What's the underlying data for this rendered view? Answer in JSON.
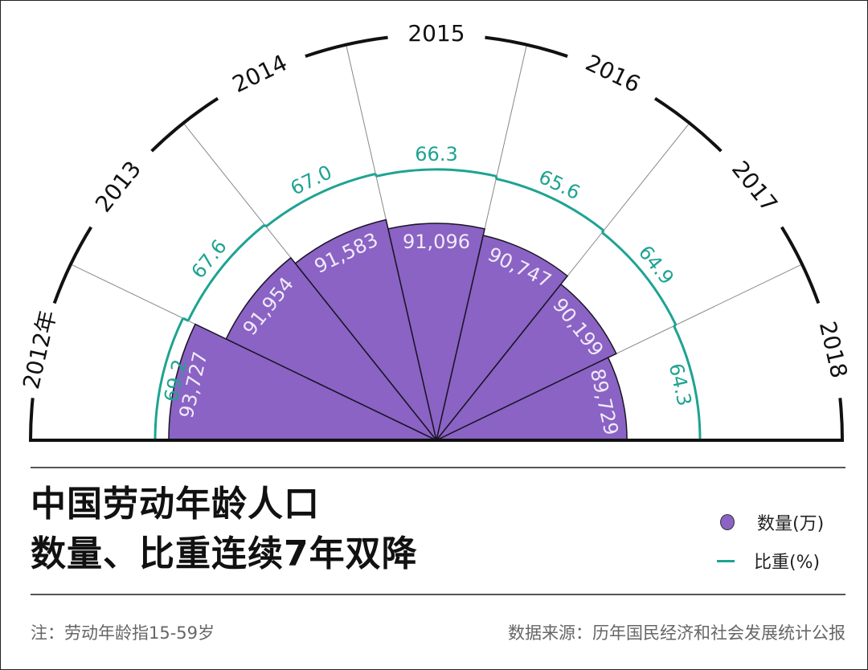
{
  "chart_data": {
    "type": "polar-bar",
    "title": "中国劳动年龄人口数量、比重连续7年双降",
    "categories": [
      "2012年",
      "2013",
      "2014",
      "2015",
      "2016",
      "2017",
      "2018"
    ],
    "series": [
      {
        "name": "数量(万)",
        "kind": "bar",
        "color": "#8a63c4",
        "values": [
          93727,
          91954,
          91583,
          91096,
          90747,
          90199,
          89729
        ],
        "labels": [
          "93,727",
          "91,954",
          "91,583",
          "91,096",
          "90,747",
          "90,199",
          "89,729"
        ]
      },
      {
        "name": "比重(%)",
        "kind": "line",
        "color": "#1ea392",
        "values": [
          69.2,
          67.6,
          67.0,
          66.3,
          65.6,
          64.9,
          64.3
        ],
        "labels": [
          "69.2",
          "67.6",
          "67.0",
          "66.3",
          "65.6",
          "64.9",
          "64.3"
        ]
      }
    ],
    "layout": {
      "center": [
        543,
        548
      ],
      "outer_radius": 505,
      "legend_position": "bottom-right"
    }
  },
  "title": {
    "line1": "中国劳动年龄人口",
    "line2_a": "数量",
    "line2_b": "、",
    "line2_c": "比重",
    "line2_d": "连续7年双降"
  },
  "legend": {
    "bar_label": "数量(万)",
    "line_label": "比重(%)"
  },
  "footer": {
    "note": "注：劳动年龄指15-59岁",
    "source": "数据来源：历年国民经济和社会发展统计公报"
  }
}
